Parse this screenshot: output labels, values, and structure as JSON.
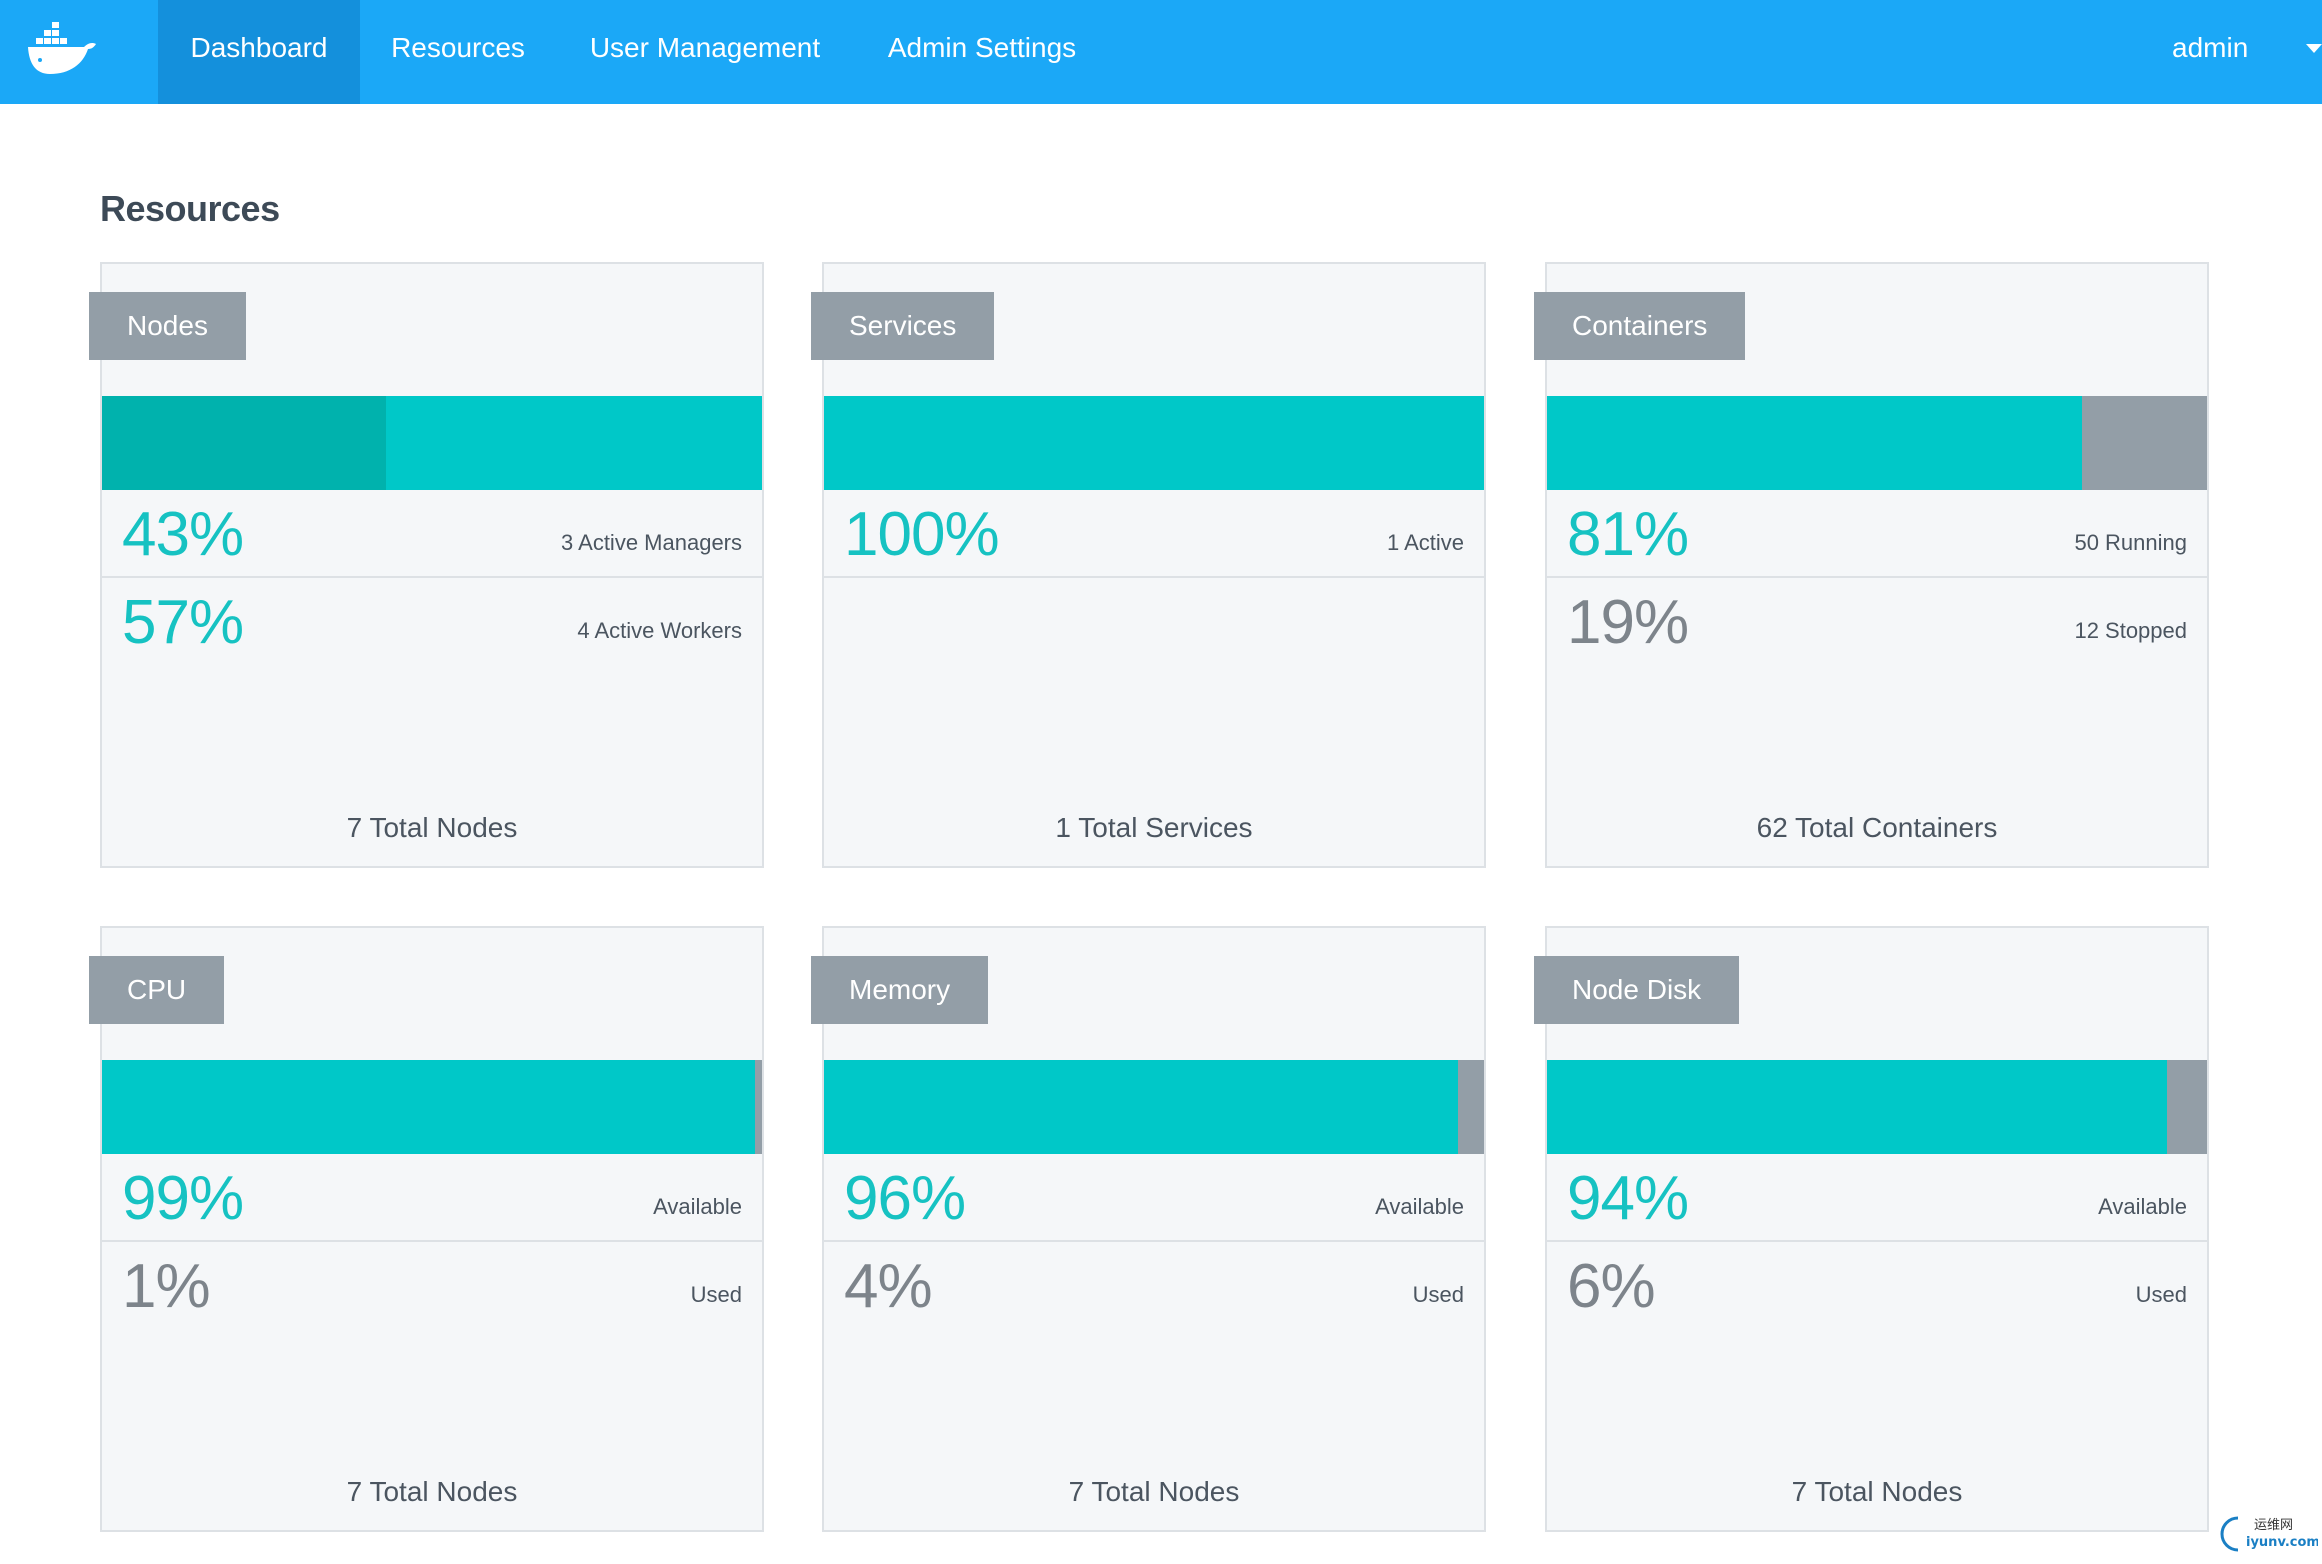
{
  "nav": {
    "items": [
      "Dashboard",
      "Resources",
      "User Management",
      "Admin Settings"
    ],
    "active": "Dashboard",
    "user": "admin"
  },
  "page": {
    "title": "Resources"
  },
  "colors": {
    "nav_bg": "#1ba8f7",
    "nav_active": "#1490dc",
    "teal": "#00c8c8",
    "teal_dark": "#00b2ad",
    "grey": "#939ea7"
  },
  "cards": [
    {
      "title": "Nodes",
      "fill_fraction": 1.0,
      "split_fraction": 0.43,
      "rows": [
        {
          "pct": "43%",
          "desc": "3 Active Managers",
          "color": "teal"
        },
        {
          "pct": "57%",
          "desc": "4 Active Workers",
          "color": "teal"
        }
      ],
      "total": "7 Total Nodes"
    },
    {
      "title": "Services",
      "fill_fraction": 1.0,
      "rows": [
        {
          "pct": "100%",
          "desc": "1 Active",
          "color": "teal"
        }
      ],
      "total": "1 Total Services"
    },
    {
      "title": "Containers",
      "fill_fraction": 0.81,
      "rows": [
        {
          "pct": "81%",
          "desc": "50 Running",
          "color": "teal"
        },
        {
          "pct": "19%",
          "desc": "12 Stopped",
          "color": "grey"
        }
      ],
      "total": "62 Total Containers"
    },
    {
      "title": "CPU",
      "fill_fraction": 0.99,
      "rows": [
        {
          "pct": "99%",
          "desc": "Available",
          "color": "teal"
        },
        {
          "pct": "1%",
          "desc": "Used",
          "color": "grey"
        }
      ],
      "total": "7 Total Nodes"
    },
    {
      "title": "Memory",
      "fill_fraction": 0.96,
      "rows": [
        {
          "pct": "96%",
          "desc": "Available",
          "color": "teal"
        },
        {
          "pct": "4%",
          "desc": "Used",
          "color": "grey"
        }
      ],
      "total": "7 Total Nodes"
    },
    {
      "title": "Node Disk",
      "fill_fraction": 0.94,
      "rows": [
        {
          "pct": "94%",
          "desc": "Available",
          "color": "teal"
        },
        {
          "pct": "6%",
          "desc": "Used",
          "color": "grey"
        }
      ],
      "total": "7 Total Nodes"
    }
  ],
  "watermark": {
    "line1": "运维网",
    "line2": "iyunv.com"
  }
}
